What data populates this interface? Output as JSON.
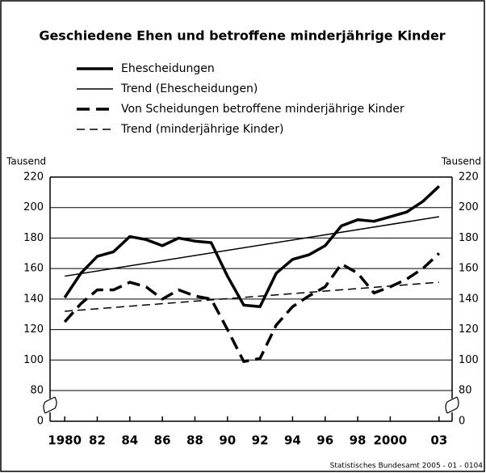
{
  "chart_data": {
    "type": "line",
    "title": "Geschiedene Ehen und betroffene minderjährige Kinder",
    "y_label": "Tausend",
    "source": "Statistisches Bundesamt 2005 - 01 - 0104",
    "x": [
      1980,
      1981,
      1982,
      1983,
      1984,
      1985,
      1986,
      1987,
      1988,
      1989,
      1990,
      1991,
      1992,
      1993,
      1994,
      1995,
      1996,
      1997,
      1998,
      1999,
      2000,
      2001,
      2002,
      2003
    ],
    "xlim": [
      1979.1,
      2003.8
    ],
    "xticks": [
      1980,
      {
        "value": 1982,
        "label": "82"
      },
      {
        "value": 1984,
        "label": "84"
      },
      {
        "value": 1986,
        "label": "86"
      },
      {
        "value": 1988,
        "label": "88"
      },
      {
        "value": 1990,
        "label": "90"
      },
      {
        "value": 1992,
        "label": "92"
      },
      {
        "value": 1994,
        "label": "94"
      },
      {
        "value": 1996,
        "label": "96"
      },
      {
        "value": 1998,
        "label": "98"
      },
      2000,
      {
        "value": 2003,
        "label": "03"
      }
    ],
    "ylim": [
      80,
      220
    ],
    "yticks": [
      0,
      80,
      100,
      120,
      140,
      160,
      180,
      200,
      220
    ],
    "axis_break": true,
    "grid": true,
    "series": [
      {
        "name": "Ehescheidungen",
        "color": "#000000",
        "line_style": "solid",
        "line_width": "thick",
        "values": [
          141,
          157,
          168,
          171,
          181,
          179,
          175,
          180,
          178,
          177,
          155,
          136,
          135,
          157,
          166,
          169,
          175,
          188,
          192,
          191,
          194,
          197,
          204,
          214
        ]
      },
      {
        "name": "Trend (Ehescheidungen)",
        "color": "#000000",
        "line_style": "solid",
        "line_width": "thin",
        "x": [
          1980,
          2003
        ],
        "values": [
          155,
          194
        ]
      },
      {
        "name": "Von Scheidungen betroffene minderjährige Kinder",
        "color": "#000000",
        "line_style": "dashed",
        "line_width": "thick",
        "values": [
          125,
          137,
          146,
          146,
          151,
          148,
          140,
          146,
          142,
          140,
          120,
          99,
          101,
          123,
          135,
          142,
          148,
          163,
          157,
          144,
          148,
          153,
          160,
          170
        ]
      },
      {
        "name": "Trend (minderjährige Kinder)",
        "color": "#000000",
        "line_style": "dashed",
        "line_width": "thin",
        "x": [
          1980,
          2003
        ],
        "values": [
          132,
          151
        ]
      }
    ]
  }
}
